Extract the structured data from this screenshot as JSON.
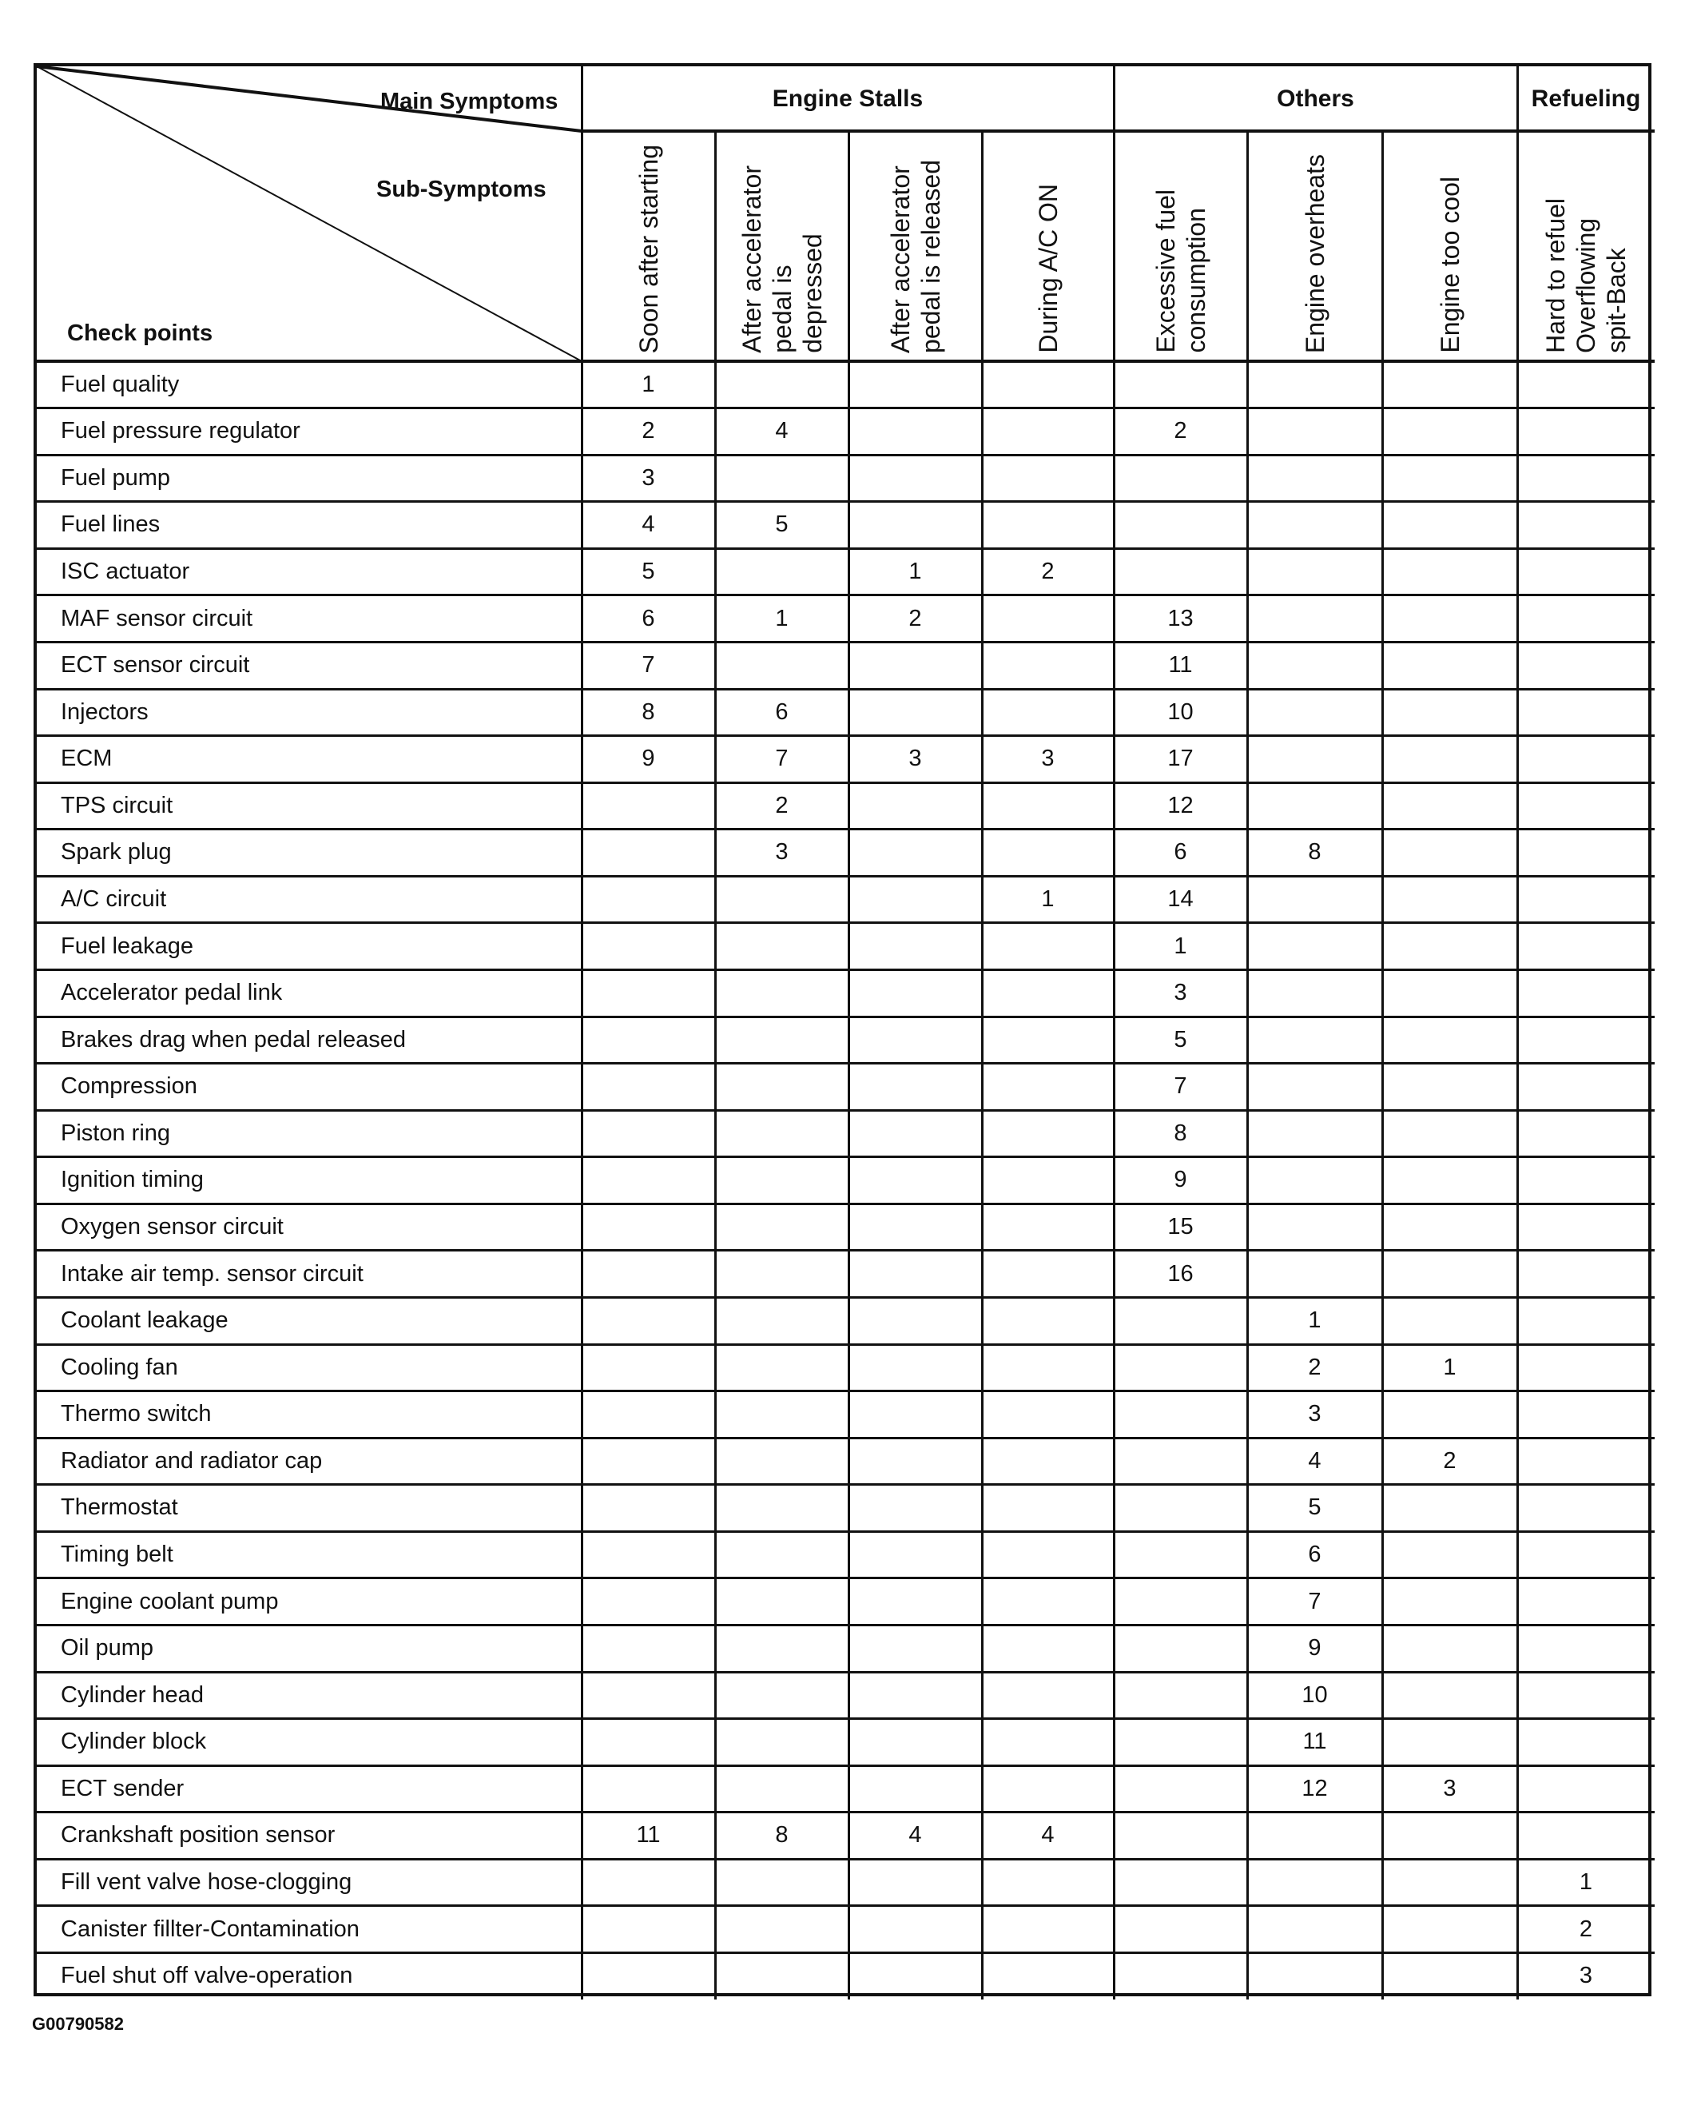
{
  "corner": {
    "main": "Main Symptoms",
    "sub": "Sub-Symptoms",
    "check": "Check points"
  },
  "main_symptoms": [
    {
      "label": "Engine Stalls",
      "span": 4
    },
    {
      "label": "Others",
      "span": 3
    },
    {
      "label": "Refueling",
      "span": 1
    }
  ],
  "sub_symptoms": [
    {
      "lines": [
        "Soon after starting"
      ]
    },
    {
      "lines": [
        "After accelerator",
        "pedal is",
        "depressed"
      ]
    },
    {
      "lines": [
        "After accelerator",
        "pedal is released"
      ]
    },
    {
      "lines": [
        "During A/C ON"
      ]
    },
    {
      "lines": [
        "Excessive fuel",
        "consumption"
      ]
    },
    {
      "lines": [
        "Engine overheats"
      ]
    },
    {
      "lines": [
        "Engine too cool"
      ]
    },
    {
      "lines": [
        "Hard to refuel",
        "Overflowing",
        "spit-Back"
      ]
    }
  ],
  "rows": [
    {
      "label": "Fuel quality",
      "values": [
        "1",
        "",
        "",
        "",
        "",
        "",
        "",
        ""
      ]
    },
    {
      "label": "Fuel pressure regulator",
      "values": [
        "2",
        "4",
        "",
        "",
        "2",
        "",
        "",
        ""
      ]
    },
    {
      "label": "Fuel pump",
      "values": [
        "3",
        "",
        "",
        "",
        "",
        "",
        "",
        ""
      ]
    },
    {
      "label": "Fuel lines",
      "values": [
        "4",
        "5",
        "",
        "",
        "",
        "",
        "",
        ""
      ]
    },
    {
      "label": "ISC actuator",
      "values": [
        "5",
        "",
        "1",
        "2",
        "",
        "",
        "",
        ""
      ]
    },
    {
      "label": "MAF sensor circuit",
      "values": [
        "6",
        "1",
        "2",
        "",
        "13",
        "",
        "",
        ""
      ]
    },
    {
      "label": "ECT sensor circuit",
      "values": [
        "7",
        "",
        "",
        "",
        "11",
        "",
        "",
        ""
      ]
    },
    {
      "label": "Injectors",
      "values": [
        "8",
        "6",
        "",
        "",
        "10",
        "",
        "",
        ""
      ]
    },
    {
      "label": "ECM",
      "values": [
        "9",
        "7",
        "3",
        "3",
        "17",
        "",
        "",
        ""
      ]
    },
    {
      "label": "TPS circuit",
      "values": [
        "",
        "2",
        "",
        "",
        "12",
        "",
        "",
        ""
      ]
    },
    {
      "label": "Spark plug",
      "values": [
        "",
        "3",
        "",
        "",
        "6",
        "8",
        "",
        ""
      ]
    },
    {
      "label": "A/C circuit",
      "values": [
        "",
        "",
        "",
        "1",
        "14",
        "",
        "",
        ""
      ]
    },
    {
      "label": "Fuel leakage",
      "values": [
        "",
        "",
        "",
        "",
        "1",
        "",
        "",
        ""
      ]
    },
    {
      "label": "Accelerator pedal link",
      "values": [
        "",
        "",
        "",
        "",
        "3",
        "",
        "",
        ""
      ]
    },
    {
      "label": "Brakes drag when pedal released",
      "values": [
        "",
        "",
        "",
        "",
        "5",
        "",
        "",
        ""
      ]
    },
    {
      "label": "Compression",
      "values": [
        "",
        "",
        "",
        "",
        "7",
        "",
        "",
        ""
      ]
    },
    {
      "label": "Piston ring",
      "values": [
        "",
        "",
        "",
        "",
        "8",
        "",
        "",
        ""
      ]
    },
    {
      "label": "Ignition timing",
      "values": [
        "",
        "",
        "",
        "",
        "9",
        "",
        "",
        ""
      ]
    },
    {
      "label": "Oxygen sensor circuit",
      "values": [
        "",
        "",
        "",
        "",
        "15",
        "",
        "",
        ""
      ]
    },
    {
      "label": "Intake air temp. sensor circuit",
      "values": [
        "",
        "",
        "",
        "",
        "16",
        "",
        "",
        ""
      ]
    },
    {
      "label": "Coolant leakage",
      "values": [
        "",
        "",
        "",
        "",
        "",
        "1",
        "",
        ""
      ]
    },
    {
      "label": "Cooling fan",
      "values": [
        "",
        "",
        "",
        "",
        "",
        "2",
        "1",
        ""
      ]
    },
    {
      "label": "Thermo switch",
      "values": [
        "",
        "",
        "",
        "",
        "",
        "3",
        "",
        ""
      ]
    },
    {
      "label": "Radiator and radiator cap",
      "values": [
        "",
        "",
        "",
        "",
        "",
        "4",
        "2",
        ""
      ]
    },
    {
      "label": "Thermostat",
      "values": [
        "",
        "",
        "",
        "",
        "",
        "5",
        "",
        ""
      ]
    },
    {
      "label": "Timing belt",
      "values": [
        "",
        "",
        "",
        "",
        "",
        "6",
        "",
        ""
      ]
    },
    {
      "label": "Engine coolant pump",
      "values": [
        "",
        "",
        "",
        "",
        "",
        "7",
        "",
        ""
      ]
    },
    {
      "label": "Oil pump",
      "values": [
        "",
        "",
        "",
        "",
        "",
        "9",
        "",
        ""
      ]
    },
    {
      "label": "Cylinder head",
      "values": [
        "",
        "",
        "",
        "",
        "",
        "10",
        "",
        ""
      ]
    },
    {
      "label": "Cylinder block",
      "values": [
        "",
        "",
        "",
        "",
        "",
        "11",
        "",
        ""
      ]
    },
    {
      "label": "ECT sender",
      "values": [
        "",
        "",
        "",
        "",
        "",
        "12",
        "3",
        ""
      ]
    },
    {
      "label": "Crankshaft position sensor",
      "values": [
        "11",
        "8",
        "4",
        "4",
        "",
        "",
        "",
        ""
      ]
    },
    {
      "label": "Fill vent valve hose-clogging",
      "values": [
        "",
        "",
        "",
        "",
        "",
        "",
        "",
        "1"
      ]
    },
    {
      "label": "Canister fillter-Contamination",
      "values": [
        "",
        "",
        "",
        "",
        "",
        "",
        "",
        "2"
      ]
    },
    {
      "label": "Fuel shut off valve-operation",
      "values": [
        "",
        "",
        "",
        "",
        "",
        "",
        "",
        "3"
      ]
    }
  ],
  "footnote": "G00790582"
}
